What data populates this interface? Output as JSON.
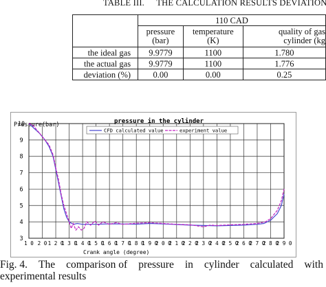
{
  "table": {
    "caption_number": "TABLE III.",
    "caption_title": "THE CALCULATION RESULTS DEVIATION",
    "group_header": "110 CAD",
    "columns": [
      {
        "line1": "pressure",
        "line2": "(bar)"
      },
      {
        "line1": "temperature",
        "line2": "(K)"
      },
      {
        "line1": "quality of gas",
        "line2": "cylinder (kg"
      }
    ],
    "rows": [
      {
        "label": "the ideal gas",
        "values": [
          "9.9779",
          "1100",
          "1.780"
        ]
      },
      {
        "label": "the actual gas",
        "values": [
          "9.9779",
          "1100",
          "1.776"
        ]
      },
      {
        "label": "deviation (%)",
        "values": [
          "0.00",
          "0.00",
          "0.25"
        ]
      }
    ]
  },
  "figure_caption": {
    "line1_words": [
      "Fig. 4.",
      "The",
      "comparison of",
      "pressure",
      "in",
      "cylinder",
      "calculated",
      "with"
    ],
    "line2": "experimental results"
  },
  "chart_data": {
    "type": "line",
    "title": "pressure in the cylinder",
    "ylabel": "Pressure(bar)",
    "xlabel": "Crank angle (degree)",
    "x_tick_labels": [
      "1 0",
      "2 0",
      "1 2 0",
      "1 3 0",
      "1 4 0",
      "1 5 0",
      "1 6 0",
      "1 7 0",
      "1 8 0",
      "1 9 0",
      "2 0 0",
      "2 1 0",
      "2 2 0",
      "2 3 0",
      "2 4 0",
      "2 5 0",
      "2 6 0",
      "2 7 0",
      "2 8 0",
      "2 9 0"
    ],
    "y_ticks": [
      3,
      4,
      5,
      6,
      7,
      8,
      9,
      10
    ],
    "ylim": [
      3,
      10
    ],
    "grid": true,
    "legend_position": "top-center",
    "series": [
      {
        "name": "CFD calculated value",
        "color": "#4a4ad0",
        "points": [
          [
            0,
            10.0
          ],
          [
            0.4,
            9.7
          ],
          [
            0.8,
            9.4
          ],
          [
            1.2,
            9.0
          ],
          [
            1.5,
            8.6
          ],
          [
            1.8,
            8.0
          ],
          [
            2.0,
            7.2
          ],
          [
            2.2,
            6.4
          ],
          [
            2.4,
            5.6
          ],
          [
            2.6,
            4.8
          ],
          [
            2.8,
            4.3
          ],
          [
            3.0,
            4.0
          ],
          [
            3.3,
            3.85
          ],
          [
            3.6,
            3.9
          ],
          [
            4.0,
            3.85
          ],
          [
            5,
            3.85
          ],
          [
            6,
            3.88
          ],
          [
            7,
            3.87
          ],
          [
            8,
            3.86
          ],
          [
            9,
            3.9
          ],
          [
            10,
            3.87
          ],
          [
            11,
            3.84
          ],
          [
            12,
            3.8
          ],
          [
            13,
            3.78
          ],
          [
            14,
            3.76
          ],
          [
            15,
            3.78
          ],
          [
            16,
            3.8
          ],
          [
            17,
            3.85
          ],
          [
            17.5,
            3.9
          ],
          [
            18,
            4.1
          ],
          [
            18.5,
            4.5
          ],
          [
            18.8,
            5.0
          ],
          [
            19,
            5.7
          ]
        ]
      },
      {
        "name": "experiment value",
        "color": "#c020c0",
        "points": [
          [
            0,
            10.0
          ],
          [
            0.3,
            9.9
          ],
          [
            0.7,
            9.5
          ],
          [
            1.1,
            9.1
          ],
          [
            1.5,
            8.7
          ],
          [
            1.8,
            8.1
          ],
          [
            2.0,
            7.3
          ],
          [
            2.2,
            6.6
          ],
          [
            2.4,
            5.7
          ],
          [
            2.6,
            5.0
          ],
          [
            2.8,
            4.5
          ],
          [
            3.0,
            4.0
          ],
          [
            3.15,
            3.6
          ],
          [
            3.3,
            3.9
          ],
          [
            3.5,
            3.5
          ],
          [
            3.7,
            3.7
          ],
          [
            3.9,
            3.5
          ],
          [
            4.1,
            3.6
          ],
          [
            4.3,
            4.0
          ],
          [
            4.6,
            3.8
          ],
          [
            4.9,
            4.05
          ],
          [
            5.2,
            3.8
          ],
          [
            5.5,
            4.0
          ],
          [
            6,
            3.85
          ],
          [
            6.5,
            3.95
          ],
          [
            7,
            3.85
          ],
          [
            8,
            3.92
          ],
          [
            9,
            3.95
          ],
          [
            10,
            3.9
          ],
          [
            11,
            3.85
          ],
          [
            12,
            3.82
          ],
          [
            13,
            3.7
          ],
          [
            13.5,
            3.8
          ],
          [
            14,
            3.78
          ],
          [
            15,
            3.82
          ],
          [
            16,
            3.85
          ],
          [
            17,
            3.9
          ],
          [
            17.6,
            4.0
          ],
          [
            18,
            4.2
          ],
          [
            18.5,
            4.7
          ],
          [
            18.8,
            5.3
          ],
          [
            19,
            6.0
          ]
        ]
      }
    ]
  }
}
